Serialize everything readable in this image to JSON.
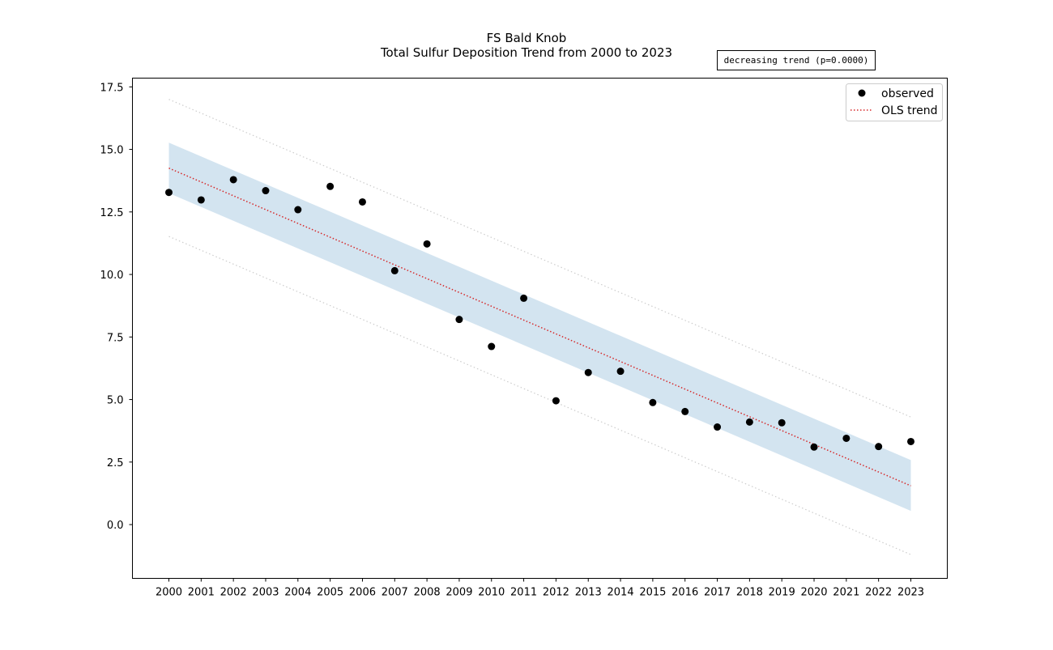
{
  "chart_data": {
    "type": "scatter",
    "title": "FS Bald Knob",
    "subtitle": "Total Sulfur Deposition Trend from 2000 to 2023",
    "xlabel": "",
    "ylabel": "",
    "x": [
      2000,
      2001,
      2002,
      2003,
      2004,
      2005,
      2006,
      2007,
      2008,
      2009,
      2010,
      2011,
      2012,
      2013,
      2014,
      2015,
      2016,
      2017,
      2018,
      2019,
      2020,
      2021,
      2022,
      2023
    ],
    "xtick_labels": [
      "2000",
      "2001",
      "2002",
      "2003",
      "2004",
      "2005",
      "2006",
      "2007",
      "2008",
      "2009",
      "2010",
      "2011",
      "2012",
      "2013",
      "2014",
      "2015",
      "2016",
      "2017",
      "2018",
      "2019",
      "2020",
      "2021",
      "2022",
      "2023"
    ],
    "xlim": [
      1998.87,
      2024.13
    ],
    "ylim": [
      -2.15,
      17.85
    ],
    "yticks": [
      0.0,
      2.5,
      5.0,
      7.5,
      10.0,
      12.5,
      15.0,
      17.5
    ],
    "ytick_labels": [
      "0.0",
      "2.5",
      "5.0",
      "7.5",
      "10.0",
      "12.5",
      "15.0",
      "17.5"
    ],
    "grid": false,
    "legend_position": "top-right",
    "series": [
      {
        "name": "observed",
        "kind": "scatter",
        "color": "#000000",
        "values": [
          13.28,
          12.98,
          13.79,
          13.35,
          12.59,
          13.52,
          12.9,
          10.15,
          11.22,
          8.2,
          7.12,
          9.05,
          4.95,
          6.08,
          6.13,
          4.88,
          4.52,
          3.9,
          4.1,
          4.07,
          3.1,
          3.45,
          3.12,
          3.32
        ]
      },
      {
        "name": "OLS trend",
        "kind": "line",
        "style": "dotted",
        "color": "#d62728",
        "start": 14.25,
        "end": 1.55
      }
    ],
    "confidence_band": {
      "color": "#aecde3",
      "start": [
        13.25,
        15.27
      ],
      "end": [
        0.55,
        2.58
      ]
    },
    "prediction_interval": {
      "color": "#cccccc",
      "start": [
        11.52,
        17.0
      ],
      "end": [
        -1.2,
        4.3
      ]
    },
    "annotation": "decreasing trend (p=0.0000)"
  }
}
